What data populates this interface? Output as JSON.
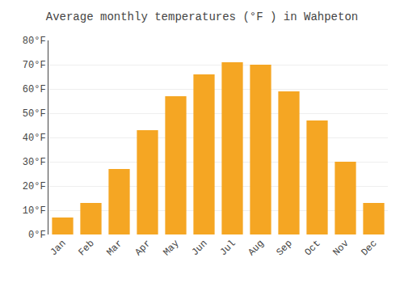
{
  "chart_data": {
    "type": "bar",
    "title": "Average monthly temperatures (°F ) in Wahpeton",
    "categories": [
      "Jan",
      "Feb",
      "Mar",
      "Apr",
      "May",
      "Jun",
      "Jul",
      "Aug",
      "Sep",
      "Oct",
      "Nov",
      "Dec"
    ],
    "values": [
      7,
      13,
      27,
      43,
      57,
      66,
      71,
      70,
      59,
      47,
      30,
      13
    ],
    "color": "#F5A623",
    "ylim": [
      0,
      80
    ],
    "yticks": [
      {
        "value": 0,
        "label": "0°F"
      },
      {
        "value": 10,
        "label": "10°F"
      },
      {
        "value": 20,
        "label": "20°F"
      },
      {
        "value": 30,
        "label": "30°F"
      },
      {
        "value": 40,
        "label": "40°F"
      },
      {
        "value": 50,
        "label": "50°F"
      },
      {
        "value": 60,
        "label": "60°F"
      },
      {
        "value": 70,
        "label": "70°F"
      },
      {
        "value": 80,
        "label": "80°F"
      }
    ],
    "grid": true
  }
}
